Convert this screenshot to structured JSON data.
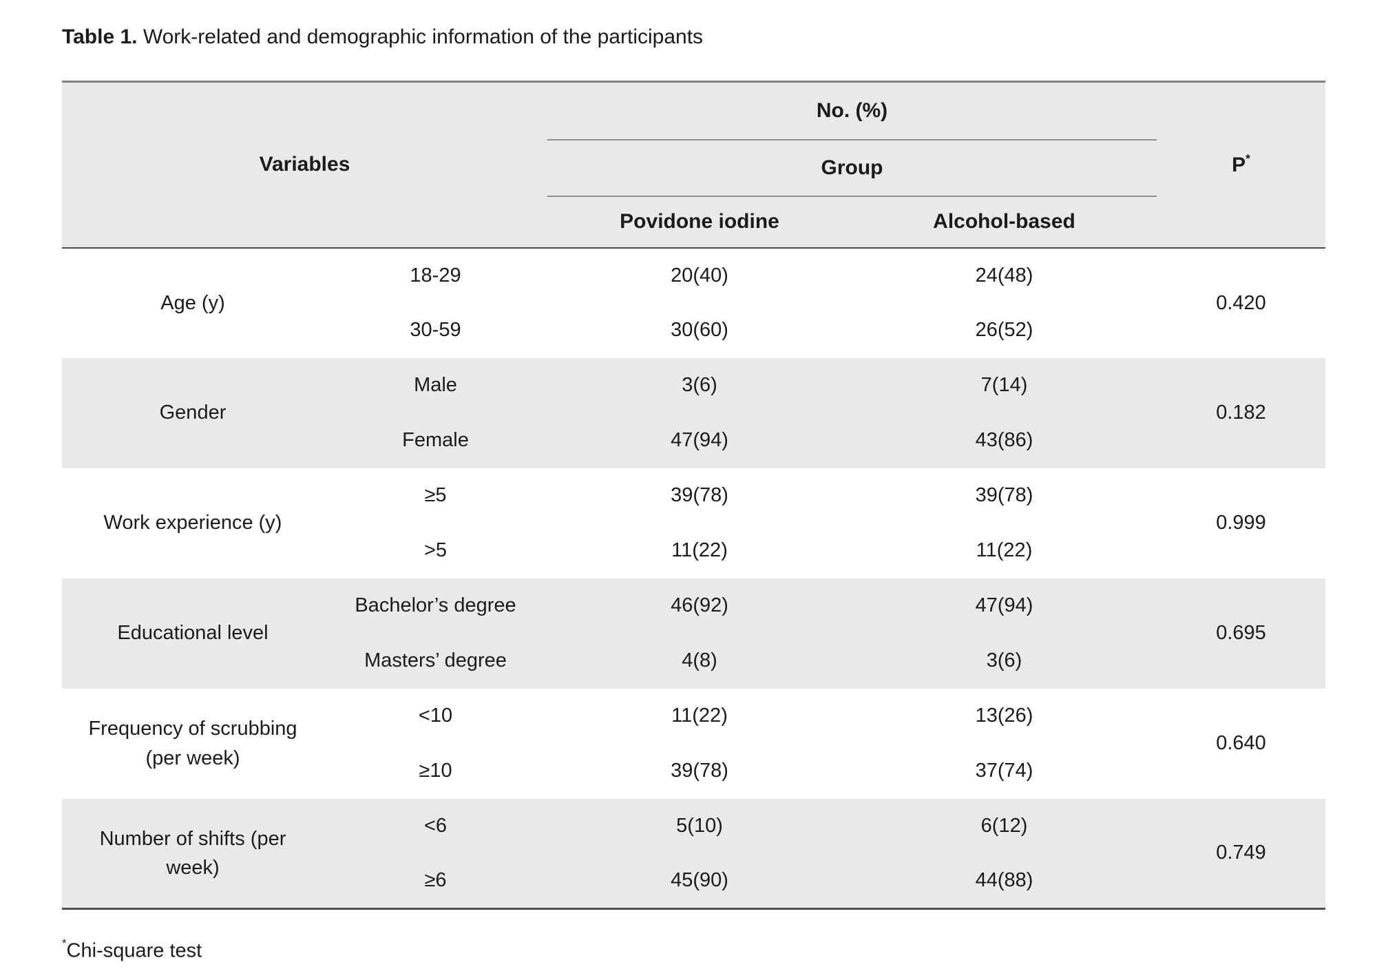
{
  "title": {
    "label": "Table 1.",
    "text": "Work-related and demographic information of the participants"
  },
  "table": {
    "header": {
      "variables": "Variables",
      "no_pct": "No. (%)",
      "group": "Group",
      "povidone": "Povidone iodine",
      "alcohol": "Alcohol-based",
      "p": "P",
      "p_sup": "*"
    },
    "rows": [
      {
        "variable": "Age (y)",
        "categories": [
          "18-29",
          "30-59"
        ],
        "povidone": [
          "20(40)",
          "30(60)"
        ],
        "alcohol": [
          "24(48)",
          "26(52)"
        ],
        "p": "0.420",
        "shaded": false
      },
      {
        "variable": "Gender",
        "categories": [
          "Male",
          "Female"
        ],
        "povidone": [
          "3(6)",
          "47(94)"
        ],
        "alcohol": [
          "7(14)",
          "43(86)"
        ],
        "p": "0.182",
        "shaded": true
      },
      {
        "variable": "Work experience (y)",
        "categories": [
          "≥5",
          ">5"
        ],
        "povidone": [
          "39(78)",
          "11(22)"
        ],
        "alcohol": [
          "39(78)",
          "11(22)"
        ],
        "p": "0.999",
        "shaded": false
      },
      {
        "variable": "Educational level",
        "categories": [
          "Bachelor’s degree",
          "Masters’ degree"
        ],
        "povidone": [
          "46(92)",
          "4(8)"
        ],
        "alcohol": [
          "47(94)",
          "3(6)"
        ],
        "p": "0.695",
        "shaded": true
      },
      {
        "variable": "Frequency of scrubbing (per week)",
        "categories": [
          "<10",
          "≥10"
        ],
        "povidone": [
          "11(22)",
          "39(78)"
        ],
        "alcohol": [
          "13(26)",
          "37(74)"
        ],
        "p": "0.640",
        "shaded": false
      },
      {
        "variable": "Number of shifts (per week)",
        "categories": [
          "<6",
          "≥6"
        ],
        "povidone": [
          "5(10)",
          "45(90)"
        ],
        "alcohol": [
          "6(12)",
          "44(88)"
        ],
        "p": "0.749",
        "shaded": true
      }
    ]
  },
  "footnote": {
    "sup": "*",
    "text": "Chi-square test"
  },
  "colors": {
    "shaded_band": "#e9e9e9",
    "rule_top": "#808080",
    "rule_dark": "#4f4f4f",
    "rule_inner": "#8f8f8f",
    "text": "#1b1b1b",
    "background": "#ffffff"
  }
}
